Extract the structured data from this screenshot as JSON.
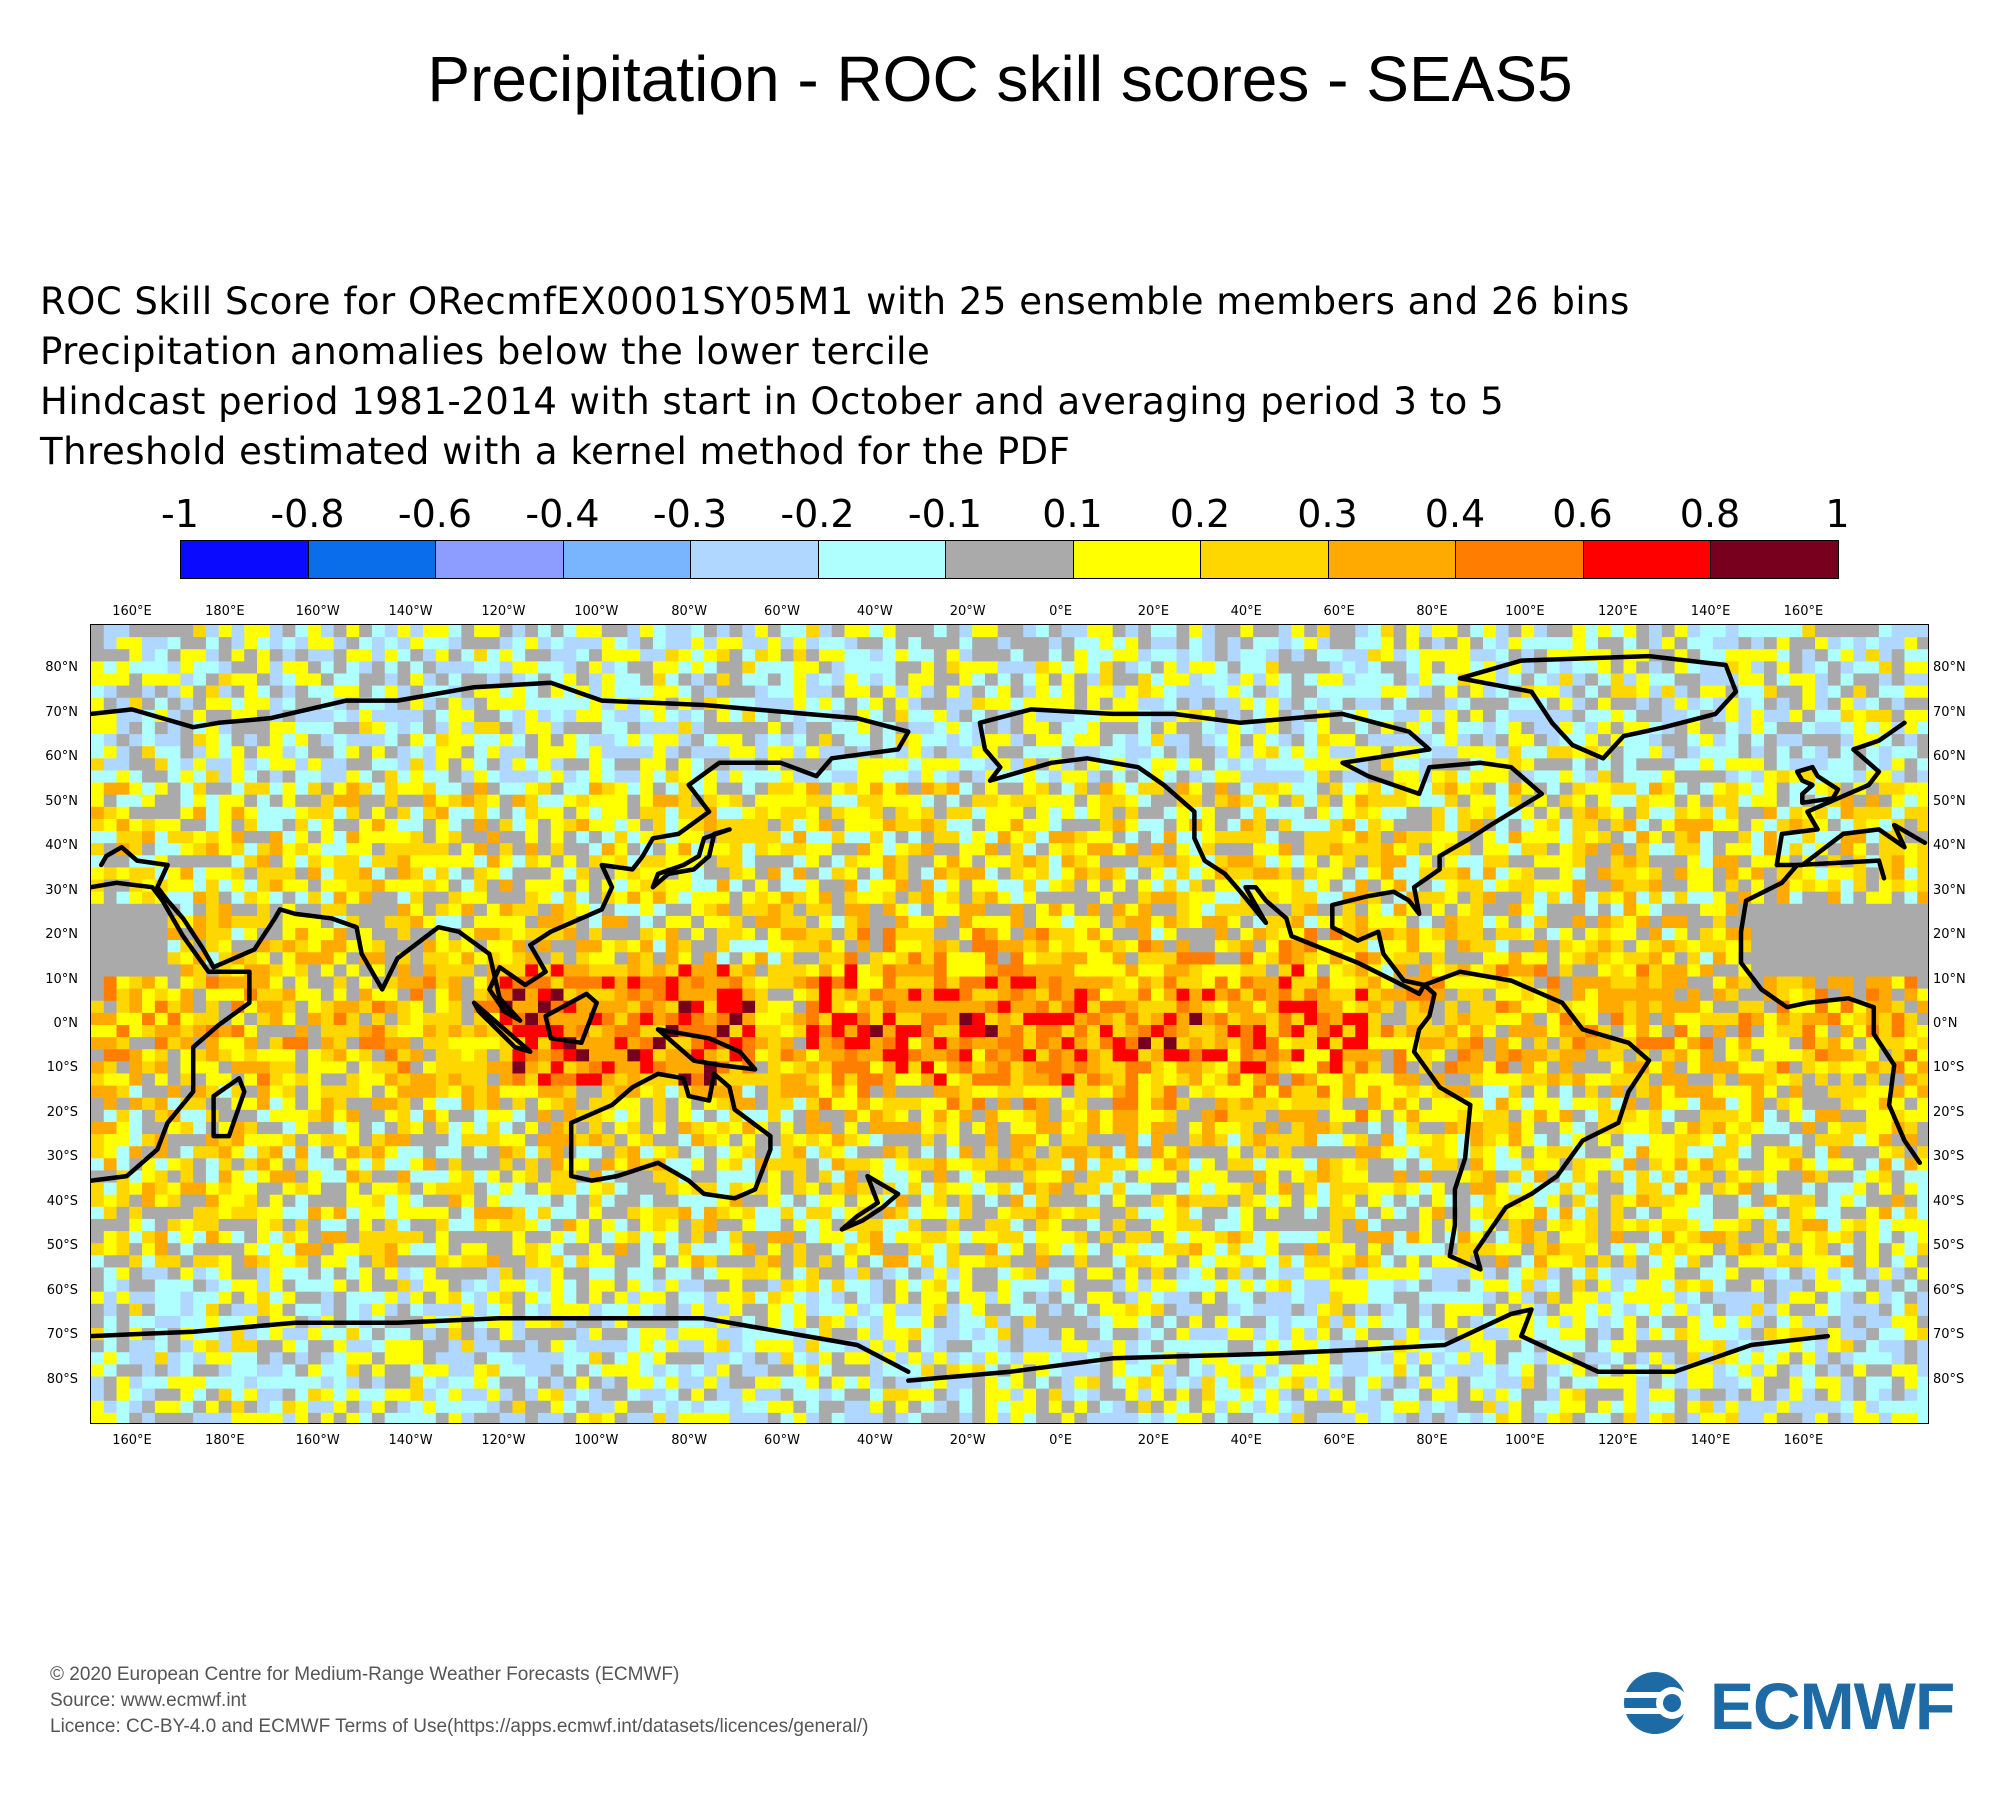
{
  "title": "Precipitation - ROC skill scores - SEAS5",
  "subtitle_lines": [
    "ROC Skill Score for ORecmfEX0001SY05M1 with 25 ensemble members and 26 bins",
    "Precipitation anomalies below the lower tercile",
    "Hindcast period 1981-2014 with start in October and averaging period  3 to  5",
    "Threshold estimated with a kernel method for the PDF"
  ],
  "colorbar": {
    "labels": [
      "-1",
      "-0.8",
      "-0.6",
      "-0.4",
      "-0.3",
      "-0.2",
      "-0.1",
      "0.1",
      "0.2",
      "0.3",
      "0.4",
      "0.6",
      "0.8",
      "1"
    ],
    "colors": [
      "#0a0aff",
      "#0a6eeb",
      "#8c9cff",
      "#78b4ff",
      "#afd7ff",
      "#afffff",
      "#aaaaaa",
      "#ffff00",
      "#ffd700",
      "#ffaa00",
      "#ff7d00",
      "#ff0000",
      "#78001e"
    ]
  },
  "map": {
    "lon_labels": [
      "160°E",
      "180°E",
      "160°W",
      "140°W",
      "120°W",
      "100°W",
      "80°W",
      "60°W",
      "40°W",
      "20°W",
      "0°E",
      "20°E",
      "40°E",
      "60°E",
      "80°E",
      "100°E",
      "120°E",
      "140°E",
      "160°E"
    ],
    "lat_labels": [
      "80°N",
      "70°N",
      "60°N",
      "50°N",
      "40°N",
      "30°N",
      "20°N",
      "10°N",
      "0°N",
      "10°S",
      "20°S",
      "30°S",
      "40°S",
      "50°S",
      "60°S",
      "70°S",
      "80°S"
    ],
    "icons": [
      "coastline-icon"
    ]
  },
  "footer": {
    "lines": [
      "© 2020 European Centre for Medium-Range Weather Forecasts (ECMWF)",
      "Source: www.ecmwf.int",
      "Licence: CC-BY-4.0 and ECMWF Terms of Use(https://apps.ecmwf.int/datasets/licences/general/)"
    ],
    "logo_text": "ECMWF",
    "logo_color": "#1d6aa5"
  }
}
